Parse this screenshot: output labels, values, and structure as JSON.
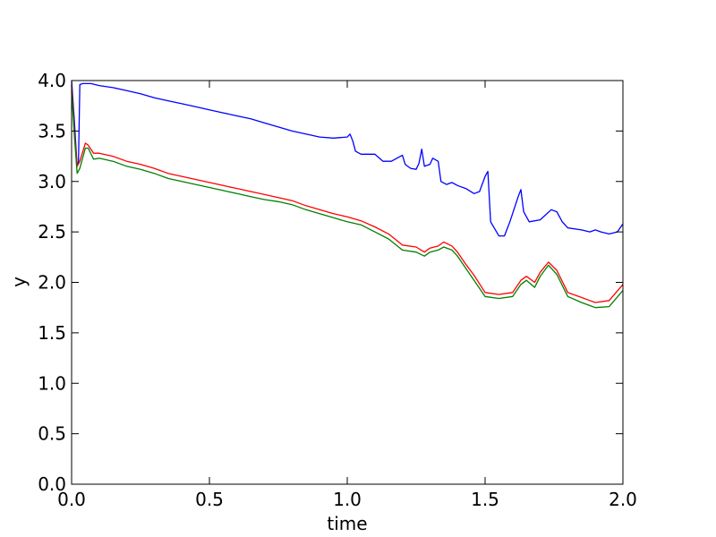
{
  "chart_data": {
    "type": "line",
    "xlabel": "time",
    "ylabel": "y",
    "xlim": [
      0,
      2.0
    ],
    "ylim": [
      0,
      4.0
    ],
    "grid": false,
    "x_ticks": [
      "0.0",
      "0.5",
      "1.0",
      "1.5",
      "2.0"
    ],
    "y_ticks": [
      "0.0",
      "0.5",
      "1.0",
      "1.5",
      "2.0",
      "2.5",
      "3.0",
      "3.5",
      "4.0"
    ],
    "series": [
      {
        "color": "#0000ff",
        "points": [
          [
            0.0,
            4.0
          ],
          [
            0.01,
            3.6
          ],
          [
            0.02,
            3.15
          ],
          [
            0.025,
            3.2
          ],
          [
            0.03,
            3.96
          ],
          [
            0.04,
            3.97
          ],
          [
            0.07,
            3.97
          ],
          [
            0.1,
            3.95
          ],
          [
            0.15,
            3.93
          ],
          [
            0.2,
            3.9
          ],
          [
            0.25,
            3.87
          ],
          [
            0.3,
            3.83
          ],
          [
            0.35,
            3.8
          ],
          [
            0.4,
            3.77
          ],
          [
            0.45,
            3.74
          ],
          [
            0.5,
            3.71
          ],
          [
            0.55,
            3.68
          ],
          [
            0.6,
            3.65
          ],
          [
            0.65,
            3.62
          ],
          [
            0.7,
            3.58
          ],
          [
            0.75,
            3.54
          ],
          [
            0.8,
            3.5
          ],
          [
            0.85,
            3.47
          ],
          [
            0.9,
            3.44
          ],
          [
            0.95,
            3.43
          ],
          [
            1.0,
            3.44
          ],
          [
            1.01,
            3.47
          ],
          [
            1.02,
            3.4
          ],
          [
            1.03,
            3.3
          ],
          [
            1.05,
            3.27
          ],
          [
            1.1,
            3.27
          ],
          [
            1.13,
            3.2
          ],
          [
            1.16,
            3.2
          ],
          [
            1.18,
            3.23
          ],
          [
            1.2,
            3.26
          ],
          [
            1.21,
            3.17
          ],
          [
            1.23,
            3.13
          ],
          [
            1.25,
            3.12
          ],
          [
            1.26,
            3.18
          ],
          [
            1.27,
            3.32
          ],
          [
            1.28,
            3.15
          ],
          [
            1.3,
            3.17
          ],
          [
            1.31,
            3.23
          ],
          [
            1.33,
            3.2
          ],
          [
            1.34,
            3.0
          ],
          [
            1.36,
            2.97
          ],
          [
            1.38,
            2.99
          ],
          [
            1.4,
            2.96
          ],
          [
            1.43,
            2.93
          ],
          [
            1.46,
            2.88
          ],
          [
            1.48,
            2.9
          ],
          [
            1.5,
            3.05
          ],
          [
            1.51,
            3.1
          ],
          [
            1.52,
            2.6
          ],
          [
            1.55,
            2.46
          ],
          [
            1.57,
            2.46
          ],
          [
            1.59,
            2.6
          ],
          [
            1.62,
            2.85
          ],
          [
            1.63,
            2.92
          ],
          [
            1.64,
            2.7
          ],
          [
            1.66,
            2.6
          ],
          [
            1.7,
            2.62
          ],
          [
            1.74,
            2.72
          ],
          [
            1.76,
            2.7
          ],
          [
            1.78,
            2.6
          ],
          [
            1.8,
            2.54
          ],
          [
            1.85,
            2.52
          ],
          [
            1.88,
            2.5
          ],
          [
            1.9,
            2.52
          ],
          [
            1.92,
            2.5
          ],
          [
            1.95,
            2.48
          ],
          [
            1.98,
            2.5
          ],
          [
            2.0,
            2.58
          ]
        ]
      },
      {
        "color": "#ff0000",
        "points": [
          [
            0.0,
            3.95
          ],
          [
            0.01,
            3.5
          ],
          [
            0.02,
            3.15
          ],
          [
            0.03,
            3.2
          ],
          [
            0.05,
            3.38
          ],
          [
            0.06,
            3.36
          ],
          [
            0.08,
            3.28
          ],
          [
            0.1,
            3.28
          ],
          [
            0.15,
            3.25
          ],
          [
            0.2,
            3.2
          ],
          [
            0.25,
            3.17
          ],
          [
            0.3,
            3.13
          ],
          [
            0.35,
            3.08
          ],
          [
            0.4,
            3.05
          ],
          [
            0.45,
            3.02
          ],
          [
            0.5,
            2.99
          ],
          [
            0.55,
            2.96
          ],
          [
            0.6,
            2.93
          ],
          [
            0.65,
            2.9
          ],
          [
            0.7,
            2.87
          ],
          [
            0.75,
            2.84
          ],
          [
            0.8,
            2.81
          ],
          [
            0.85,
            2.76
          ],
          [
            0.9,
            2.72
          ],
          [
            0.95,
            2.68
          ],
          [
            1.0,
            2.65
          ],
          [
            1.05,
            2.61
          ],
          [
            1.1,
            2.55
          ],
          [
            1.15,
            2.48
          ],
          [
            1.2,
            2.37
          ],
          [
            1.25,
            2.35
          ],
          [
            1.28,
            2.3
          ],
          [
            1.3,
            2.34
          ],
          [
            1.33,
            2.36
          ],
          [
            1.35,
            2.4
          ],
          [
            1.38,
            2.36
          ],
          [
            1.4,
            2.3
          ],
          [
            1.43,
            2.18
          ],
          [
            1.46,
            2.07
          ],
          [
            1.5,
            1.9
          ],
          [
            1.55,
            1.88
          ],
          [
            1.6,
            1.9
          ],
          [
            1.63,
            2.02
          ],
          [
            1.65,
            2.06
          ],
          [
            1.68,
            2.0
          ],
          [
            1.7,
            2.1
          ],
          [
            1.73,
            2.2
          ],
          [
            1.76,
            2.12
          ],
          [
            1.8,
            1.9
          ],
          [
            1.85,
            1.85
          ],
          [
            1.88,
            1.82
          ],
          [
            1.9,
            1.8
          ],
          [
            1.95,
            1.82
          ],
          [
            2.0,
            1.98
          ]
        ]
      },
      {
        "color": "#008000",
        "points": [
          [
            0.0,
            3.9
          ],
          [
            0.01,
            3.45
          ],
          [
            0.02,
            3.08
          ],
          [
            0.03,
            3.13
          ],
          [
            0.05,
            3.33
          ],
          [
            0.06,
            3.33
          ],
          [
            0.08,
            3.22
          ],
          [
            0.1,
            3.23
          ],
          [
            0.15,
            3.2
          ],
          [
            0.2,
            3.15
          ],
          [
            0.25,
            3.12
          ],
          [
            0.3,
            3.08
          ],
          [
            0.35,
            3.03
          ],
          [
            0.4,
            3.0
          ],
          [
            0.45,
            2.97
          ],
          [
            0.5,
            2.94
          ],
          [
            0.55,
            2.91
          ],
          [
            0.6,
            2.88
          ],
          [
            0.65,
            2.85
          ],
          [
            0.7,
            2.82
          ],
          [
            0.75,
            2.8
          ],
          [
            0.8,
            2.77
          ],
          [
            0.85,
            2.72
          ],
          [
            0.9,
            2.68
          ],
          [
            0.95,
            2.64
          ],
          [
            1.0,
            2.6
          ],
          [
            1.05,
            2.57
          ],
          [
            1.1,
            2.5
          ],
          [
            1.15,
            2.43
          ],
          [
            1.2,
            2.32
          ],
          [
            1.25,
            2.3
          ],
          [
            1.28,
            2.26
          ],
          [
            1.3,
            2.3
          ],
          [
            1.33,
            2.32
          ],
          [
            1.35,
            2.35
          ],
          [
            1.38,
            2.32
          ],
          [
            1.4,
            2.26
          ],
          [
            1.43,
            2.14
          ],
          [
            1.46,
            2.02
          ],
          [
            1.5,
            1.86
          ],
          [
            1.55,
            1.84
          ],
          [
            1.6,
            1.86
          ],
          [
            1.63,
            1.98
          ],
          [
            1.65,
            2.02
          ],
          [
            1.68,
            1.95
          ],
          [
            1.7,
            2.06
          ],
          [
            1.73,
            2.17
          ],
          [
            1.76,
            2.08
          ],
          [
            1.8,
            1.86
          ],
          [
            1.85,
            1.8
          ],
          [
            1.88,
            1.77
          ],
          [
            1.9,
            1.75
          ],
          [
            1.95,
            1.76
          ],
          [
            2.0,
            1.92
          ]
        ]
      }
    ]
  }
}
